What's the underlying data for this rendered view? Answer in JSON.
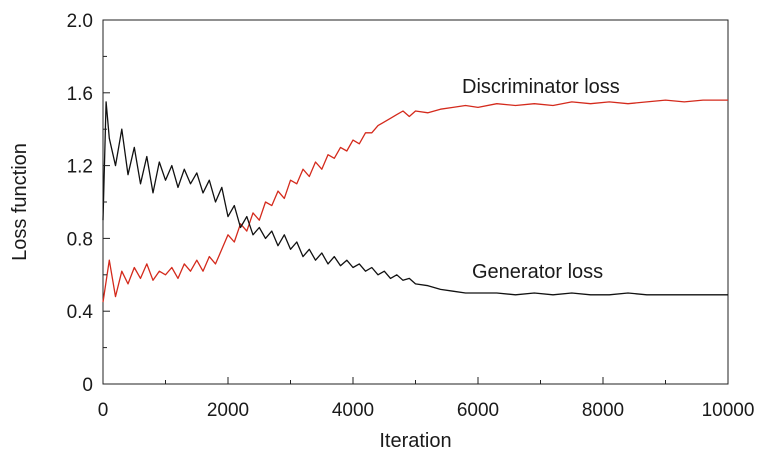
{
  "chart_data": {
    "type": "line",
    "title": "",
    "xlabel": "Iteration",
    "ylabel": "Loss function",
    "xlim": [
      0,
      10000
    ],
    "ylim": [
      0,
      2.0
    ],
    "x_ticks": [
      0,
      2000,
      4000,
      6000,
      8000,
      10000
    ],
    "x_tick_labels": [
      "0",
      "2000",
      "4000",
      "6000",
      "8000",
      "10000"
    ],
    "y_ticks": [
      0,
      0.4,
      0.8,
      1.2,
      1.6,
      2.0
    ],
    "y_tick_labels": [
      "0",
      "0.4",
      "0.8",
      "1.2",
      "1.6",
      "2.0"
    ],
    "grid": false,
    "legend": "inline labels",
    "series": [
      {
        "name": "Discriminator loss",
        "color": "#d42a1c",
        "x": [
          0,
          100,
          200,
          300,
          400,
          500,
          600,
          700,
          800,
          900,
          1000,
          1100,
          1200,
          1300,
          1400,
          1500,
          1600,
          1700,
          1800,
          1900,
          2000,
          2100,
          2200,
          2300,
          2400,
          2500,
          2600,
          2700,
          2800,
          2900,
          3000,
          3100,
          3200,
          3300,
          3400,
          3500,
          3600,
          3700,
          3800,
          3900,
          4000,
          4100,
          4200,
          4300,
          4400,
          4500,
          4600,
          4700,
          4800,
          4900,
          5000,
          5200,
          5400,
          5600,
          5800,
          6000,
          6300,
          6600,
          6900,
          7200,
          7500,
          7800,
          8100,
          8400,
          8700,
          9000,
          9300,
          9600,
          10000
        ],
        "y": [
          0.45,
          0.68,
          0.48,
          0.62,
          0.55,
          0.64,
          0.58,
          0.66,
          0.57,
          0.62,
          0.6,
          0.64,
          0.58,
          0.66,
          0.62,
          0.68,
          0.62,
          0.7,
          0.66,
          0.74,
          0.82,
          0.78,
          0.88,
          0.84,
          0.94,
          0.9,
          1.0,
          0.98,
          1.06,
          1.02,
          1.12,
          1.1,
          1.18,
          1.14,
          1.22,
          1.18,
          1.26,
          1.24,
          1.3,
          1.28,
          1.34,
          1.32,
          1.38,
          1.38,
          1.42,
          1.44,
          1.46,
          1.48,
          1.5,
          1.47,
          1.5,
          1.49,
          1.51,
          1.52,
          1.53,
          1.52,
          1.54,
          1.53,
          1.54,
          1.53,
          1.55,
          1.54,
          1.55,
          1.54,
          1.55,
          1.56,
          1.55,
          1.56,
          1.56
        ]
      },
      {
        "name": "Generator loss",
        "color": "#111111",
        "x": [
          0,
          50,
          100,
          200,
          300,
          400,
          500,
          600,
          700,
          800,
          900,
          1000,
          1100,
          1200,
          1300,
          1400,
          1500,
          1600,
          1700,
          1800,
          1900,
          2000,
          2100,
          2200,
          2300,
          2400,
          2500,
          2600,
          2700,
          2800,
          2900,
          3000,
          3100,
          3200,
          3300,
          3400,
          3500,
          3600,
          3700,
          3800,
          3900,
          4000,
          4100,
          4200,
          4300,
          4400,
          4500,
          4600,
          4700,
          4800,
          4900,
          5000,
          5200,
          5400,
          5600,
          5800,
          6000,
          6300,
          6600,
          6900,
          7200,
          7500,
          7800,
          8100,
          8400,
          8700,
          9000,
          9300,
          9600,
          10000
        ],
        "y": [
          0.9,
          1.55,
          1.35,
          1.2,
          1.4,
          1.15,
          1.3,
          1.1,
          1.25,
          1.05,
          1.22,
          1.12,
          1.2,
          1.08,
          1.18,
          1.1,
          1.16,
          1.05,
          1.12,
          1.0,
          1.08,
          0.92,
          0.98,
          0.86,
          0.92,
          0.82,
          0.86,
          0.8,
          0.84,
          0.76,
          0.82,
          0.74,
          0.78,
          0.7,
          0.74,
          0.68,
          0.72,
          0.66,
          0.7,
          0.65,
          0.68,
          0.64,
          0.66,
          0.62,
          0.64,
          0.6,
          0.62,
          0.58,
          0.6,
          0.57,
          0.58,
          0.55,
          0.54,
          0.52,
          0.51,
          0.5,
          0.5,
          0.5,
          0.49,
          0.5,
          0.49,
          0.5,
          0.49,
          0.49,
          0.5,
          0.49,
          0.49,
          0.49,
          0.49,
          0.49
        ]
      }
    ]
  }
}
